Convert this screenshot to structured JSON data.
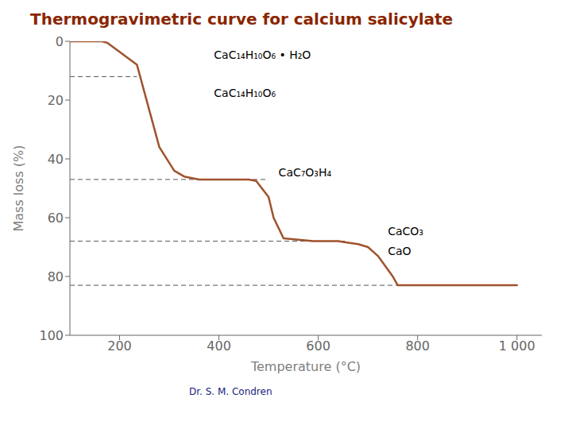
{
  "chart_data": {
    "type": "line",
    "title": "Thermogravimetric curve for calcium salicylate",
    "title_color": "#8B2500",
    "footer": "Dr. S. M. Condren",
    "footer_color": "#1a237e",
    "xlabel": "Temperature (°C)",
    "ylabel": "Mass loss (%)",
    "x": [
      100,
      165,
      175,
      235,
      280,
      310,
      330,
      360,
      390,
      420,
      450,
      460,
      475,
      500,
      510,
      530,
      590,
      620,
      640,
      660,
      680,
      700,
      720,
      750,
      760,
      800,
      900,
      1000
    ],
    "values": [
      0,
      0,
      0.5,
      8,
      36,
      44,
      46,
      47,
      47,
      47,
      47,
      47,
      47.5,
      53,
      60,
      67,
      68,
      68,
      68,
      68.5,
      69,
      70,
      73,
      80,
      83,
      83,
      83,
      83
    ],
    "color": "#A0522D",
    "xlim": [
      100,
      1050
    ],
    "ylim": [
      100,
      0
    ],
    "xticks": [
      200,
      400,
      600,
      800,
      {
        "value": 1000,
        "label": "1 000"
      }
    ],
    "yticks": [
      0,
      20,
      40,
      60,
      80,
      100
    ],
    "grid": false,
    "dashed_lines": [
      {
        "y": 12,
        "x_start": 100,
        "x_end": 235,
        "color": "#555555",
        "line_style": "dashed"
      },
      {
        "y": 47,
        "x_start": 100,
        "x_end": 500,
        "color": "#555555",
        "line_style": "dashed"
      },
      {
        "y": 68,
        "x_start": 100,
        "x_end": 660,
        "color": "#555555",
        "line_style": "dashed"
      },
      {
        "y": 83,
        "x_start": 100,
        "x_end": 1000,
        "color": "#555555",
        "line_style": "dashed"
      }
    ],
    "annotations": [
      {
        "text": "CaC₁₄H₁₀O₆ • H₂O",
        "x": 390,
        "y": 3
      },
      {
        "text": "CaC₁₄H₁₀O₆",
        "x": 390,
        "y": 16
      },
      {
        "text": "CaC₇O₃H₄",
        "x": 520,
        "y": 43
      },
      {
        "text": "CaCO₃",
        "x": 740,
        "y": 63
      },
      {
        "text": "CaO",
        "x": 740,
        "y": 70
      }
    ]
  }
}
